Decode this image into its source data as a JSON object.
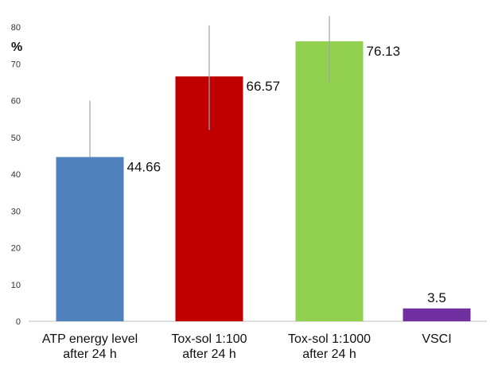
{
  "chart_data": {
    "type": "bar",
    "y_unit": "%",
    "ylim": [
      0,
      80
    ],
    "yticks": [
      0,
      10,
      20,
      30,
      40,
      50,
      60,
      70,
      80
    ],
    "grid": false,
    "categories": [
      [
        "ATP energy level",
        "after 24 h"
      ],
      [
        "Tox-sol 1:100",
        "after 24 h"
      ],
      [
        "Tox-sol 1:1000",
        "after 24 h"
      ],
      [
        "VSCI"
      ]
    ],
    "values": [
      44.66,
      66.57,
      76.13,
      3.5
    ],
    "value_labels": [
      "44.66",
      "66.57",
      "76.13",
      "3.5"
    ],
    "error_bars": [
      {
        "low": 44.66,
        "high": 60
      },
      {
        "low": 52,
        "high": 80.5
      },
      {
        "low": 65,
        "high": 83
      }
    ],
    "colors": [
      "#4f81bd",
      "#c00000",
      "#92d050",
      "#7030a0"
    ],
    "axis_color": "#bfbfbf",
    "error_color": "#9aa6b2"
  }
}
